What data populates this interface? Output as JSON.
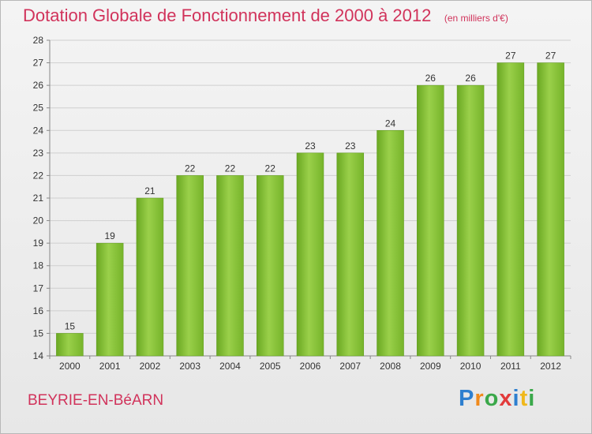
{
  "title": "Dotation Globale de Fonctionnement de 2000 à 2012",
  "unit_note": "(en milliers d'€)",
  "commune": "BEYRIE-EN-BéARN",
  "brand": {
    "text": "Proxiti",
    "letters": [
      {
        "ch": "P",
        "color": "#2e7fcf"
      },
      {
        "ch": "r",
        "color": "#f08a1c"
      },
      {
        "ch": "o",
        "color": "#3aa84a"
      },
      {
        "ch": "x",
        "color": "#e23b3b"
      },
      {
        "ch": "i",
        "color": "#2e7fcf"
      },
      {
        "ch": "t",
        "color": "#f0b81c"
      },
      {
        "ch": "i",
        "color": "#3aa84a"
      }
    ]
  },
  "colors": {
    "bar": "#7cbd2e",
    "bar_light": "#9ad04a",
    "title": "#d1335b",
    "grid": "#cfcfcf"
  },
  "chart_data": {
    "type": "bar",
    "categories": [
      "2000",
      "2001",
      "2002",
      "2003",
      "2004",
      "2005",
      "2006",
      "2007",
      "2008",
      "2009",
      "2010",
      "2011",
      "2012"
    ],
    "values": [
      15,
      19,
      21,
      22,
      22,
      22,
      23,
      23,
      24,
      26,
      26,
      27,
      27
    ],
    "ylim": [
      14,
      28
    ],
    "yticks": [
      14,
      15,
      16,
      17,
      18,
      19,
      20,
      21,
      22,
      23,
      24,
      25,
      26,
      27,
      28
    ],
    "grid": true,
    "title": "Dotation Globale de Fonctionnement de 2000 à 2012",
    "xlabel": "",
    "ylabel": ""
  }
}
